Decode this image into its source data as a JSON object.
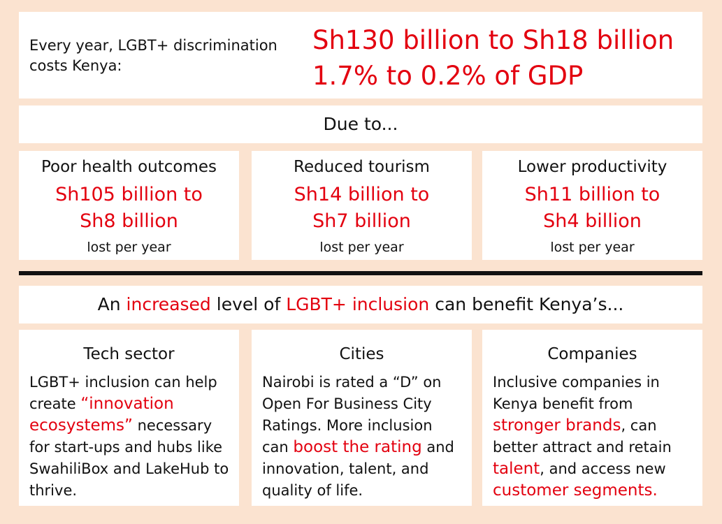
{
  "top": {
    "lead": "Every year, LGBT+ discrimination costs Kenya:",
    "cost_range": "Sh130 billion to Sh18 billion",
    "gdp_range": "1.7% to 0.2% of GDP"
  },
  "due_to": "Due to...",
  "causes": [
    {
      "title": "Poor health outcomes",
      "amount_line1": "Sh105 billion to",
      "amount_line2": "Sh8 billion",
      "sub": "lost per year"
    },
    {
      "title": "Reduced tourism",
      "amount_line1": "Sh14 billion to",
      "amount_line2": "Sh7 billion",
      "sub": "lost per year"
    },
    {
      "title": "Lower productivity",
      "amount_line1": "Sh11 billion to",
      "amount_line2": "Sh4 billion",
      "sub": "lost per year"
    }
  ],
  "inclusion": {
    "prefix": "An",
    "highlight1": "increased",
    "middle": "level of",
    "highlight2": "LGBT+ inclusion",
    "suffix": "can benefit Kenya’s..."
  },
  "benefits": [
    {
      "title": "Tech sector",
      "t1": "LGBT+ inclusion can help create",
      "h1": "“innovation ecosystems”",
      "t2": "necessary for start-ups and hubs like SwahiliBox and LakeHub to thrive."
    },
    {
      "title": "Cities",
      "t1": "Nairobi is rated a “D” on Open For Business City Ratings. More inclusion can",
      "h1": "boost the rating",
      "t2": "and innovation, talent, and quality of life."
    },
    {
      "title": "Companies",
      "t1": "Inclusive companies in Kenya benefit from",
      "h1": "stronger brands",
      "t2": ", can better attract and retain",
      "h2": "talent",
      "t3": ", and access new",
      "h3": "customer segments",
      "t4": "."
    }
  ],
  "colors": {
    "accent": "#e3000f",
    "background": "#fbe3d0",
    "card": "#ffffff",
    "divider": "#111111"
  }
}
